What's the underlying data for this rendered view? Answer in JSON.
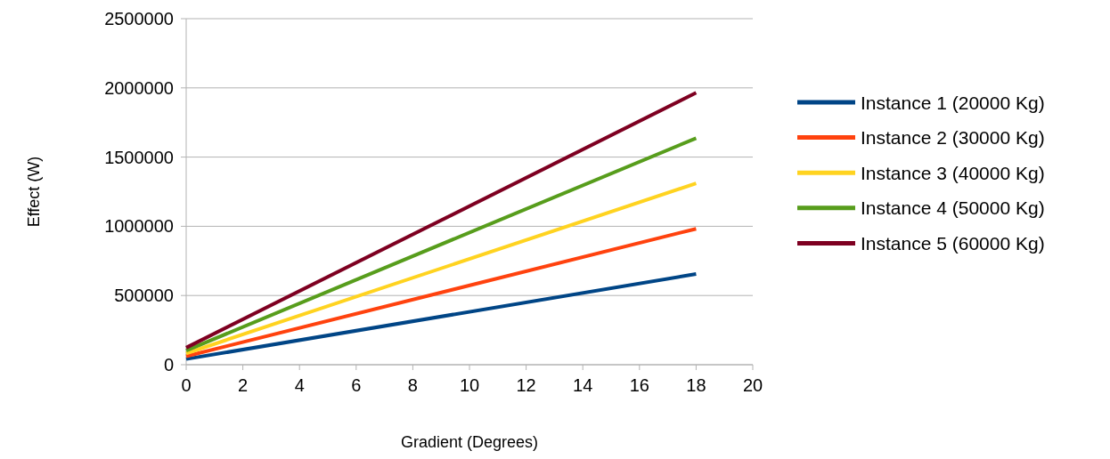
{
  "chart_data": {
    "type": "line",
    "xlabel": "Gradient (Degrees)",
    "ylabel": "Effect (W)",
    "x": [
      0,
      18
    ],
    "series": [
      {
        "name": "Instance 1 (20000 Kg)",
        "color": "#004586",
        "values": [
          41000,
          655000
        ]
      },
      {
        "name": "Instance 2 (30000 Kg)",
        "color": "#ff420e",
        "values": [
          61000,
          982000
        ]
      },
      {
        "name": "Instance 3 (40000 Kg)",
        "color": "#ffd320",
        "values": [
          82000,
          1310000
        ]
      },
      {
        "name": "Instance 4 (50000 Kg)",
        "color": "#579d1c",
        "values": [
          102000,
          1637000
        ]
      },
      {
        "name": "Instance 5 (60000 Kg)",
        "color": "#7e0021",
        "values": [
          123000,
          1965000
        ]
      }
    ],
    "xlim": [
      0,
      20
    ],
    "xticks": [
      0,
      2,
      4,
      6,
      8,
      10,
      12,
      14,
      16,
      18,
      20
    ],
    "ylim": [
      0,
      2500000
    ],
    "yticks": [
      0,
      500000,
      1000000,
      1500000,
      2000000,
      2500000
    ],
    "grid": "y",
    "legend": "right",
    "marker": "none",
    "line_style": "solid"
  }
}
